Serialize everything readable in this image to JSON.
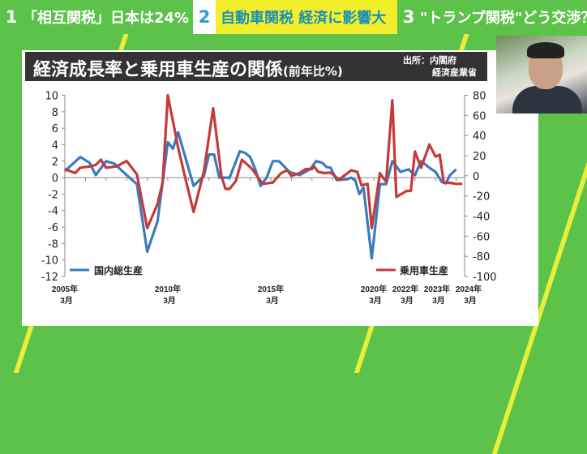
{
  "tabs": [
    {
      "num": "1",
      "label": "「相互関税」日本は24%"
    },
    {
      "num": "2",
      "label": "自動車関税 経済に影響大"
    },
    {
      "num": "3",
      "label": "\"トランプ関税\"どう交渉？"
    }
  ],
  "chart_title": {
    "main": "経済成長率と乗用車生産の関係",
    "unit": "(前年比%)"
  },
  "source": {
    "line1": "出所：内閣府",
    "line2": "経済産業省"
  },
  "colors": {
    "background": "#5cc24a",
    "gdp": "#3a7bbf",
    "car": "#c43a3a",
    "tab_active": "#f2ef2a"
  },
  "chart_data": {
    "type": "line",
    "title": "経済成長率と乗用車生産の関係(前年比%)",
    "x_ticks": [
      {
        "year": 2005,
        "l1": "2005年",
        "l2": "3月"
      },
      {
        "year": 2010,
        "l1": "2010年",
        "l2": "3月"
      },
      {
        "year": 2015,
        "l1": "2015年",
        "l2": "3月"
      },
      {
        "year": 2020,
        "l1": "2020年",
        "l2": "3月"
      },
      {
        "year": 2022,
        "l1": "2022年",
        "l2": "3月"
      },
      {
        "year": 2023,
        "l1": "2023年",
        "l2": "3月"
      },
      {
        "year": 2024,
        "l1": "2024年",
        "l2": "3月"
      }
    ],
    "y_left": {
      "range": [
        -12,
        10
      ],
      "ticks": [
        "10",
        "8",
        "6",
        "4",
        "2",
        "0",
        "-2",
        "-4",
        "-6",
        "-8",
        "-10",
        "-12"
      ]
    },
    "y_right": {
      "range": [
        -100,
        80
      ],
      "ticks": [
        "80",
        "60",
        "40",
        "20",
        "0",
        "-20",
        "-40",
        "-60",
        "-80",
        "-100"
      ]
    },
    "legend": {
      "gdp": "国内総生産",
      "car": "乗用車生産"
    },
    "series": [
      {
        "name": "国内総生産",
        "axis": "left",
        "points": [
          [
            2005.0,
            0.8
          ],
          [
            2005.75,
            2.5
          ],
          [
            2006.2,
            1.8
          ],
          [
            2006.5,
            0.3
          ],
          [
            2007.0,
            2.0
          ],
          [
            2007.4,
            1.7
          ],
          [
            2008.0,
            0.3
          ],
          [
            2008.5,
            -0.8
          ],
          [
            2009.0,
            -9
          ],
          [
            2009.5,
            -5.3
          ],
          [
            2010.0,
            4.3
          ],
          [
            2010.25,
            3.5
          ],
          [
            2010.5,
            5.5
          ],
          [
            2011.25,
            -1
          ],
          [
            2011.75,
            0.2
          ],
          [
            2012.0,
            2.8
          ],
          [
            2012.25,
            2.8
          ],
          [
            2012.5,
            0
          ],
          [
            2013.0,
            0
          ],
          [
            2013.5,
            3.2
          ],
          [
            2013.75,
            3
          ],
          [
            2014.0,
            2.5
          ],
          [
            2014.25,
            1
          ],
          [
            2014.5,
            -1
          ],
          [
            2014.8,
            0
          ],
          [
            2015.1,
            2
          ],
          [
            2015.4,
            2
          ],
          [
            2015.9,
            0.7
          ],
          [
            2016.4,
            0.3
          ],
          [
            2016.9,
            1
          ],
          [
            2017.2,
            2
          ],
          [
            2017.5,
            1.8
          ],
          [
            2017.7,
            1.3
          ],
          [
            2017.9,
            1.2
          ],
          [
            2018.2,
            -0.3
          ],
          [
            2018.7,
            -0.2
          ],
          [
            2018.9,
            0
          ],
          [
            2019.1,
            -0.3
          ],
          [
            2019.3,
            -2
          ],
          [
            2019.5,
            -1.2
          ],
          [
            2019.9,
            -9.8
          ],
          [
            2020.3,
            -0.8
          ],
          [
            2020.6,
            -0.8
          ],
          [
            2020.9,
            2
          ],
          [
            2021.3,
            0.7
          ],
          [
            2021.7,
            1
          ],
          [
            2022.0,
            0.3
          ],
          [
            2022.3,
            2
          ],
          [
            2022.7,
            1.2
          ],
          [
            2023.0,
            0.7
          ],
          [
            2023.3,
            -0.5
          ],
          [
            2023.5,
            -0.7
          ],
          [
            2023.7,
            0.3
          ],
          [
            2024.0,
            1
          ]
        ]
      },
      {
        "name": "乗用車生産",
        "axis": "right",
        "points": [
          [
            2005.0,
            6.7
          ],
          [
            2005.5,
            2.7
          ],
          [
            2005.75,
            8
          ],
          [
            2006.2,
            9.3
          ],
          [
            2006.5,
            10.7
          ],
          [
            2006.75,
            16
          ],
          [
            2007.0,
            8
          ],
          [
            2007.5,
            9.3
          ],
          [
            2008.0,
            14.7
          ],
          [
            2008.5,
            1.3
          ],
          [
            2009.0,
            -52
          ],
          [
            2009.5,
            -28
          ],
          [
            2009.75,
            -6.7
          ],
          [
            2010.0,
            80
          ],
          [
            2010.5,
            28
          ],
          [
            2010.9,
            -6.7
          ],
          [
            2011.25,
            -36
          ],
          [
            2011.75,
            4
          ],
          [
            2012.2,
            67
          ],
          [
            2012.6,
            0
          ],
          [
            2012.8,
            -13
          ],
          [
            2013.0,
            -13
          ],
          [
            2013.3,
            -5.3
          ],
          [
            2013.6,
            16
          ],
          [
            2014.1,
            6.7
          ],
          [
            2014.6,
            -8
          ],
          [
            2015.1,
            -6.7
          ],
          [
            2015.5,
            2.7
          ],
          [
            2015.8,
            5.4
          ],
          [
            2016.0,
            0
          ],
          [
            2016.4,
            2.7
          ],
          [
            2016.7,
            6.7
          ],
          [
            2017.0,
            6.7
          ],
          [
            2017.1,
            9.4
          ],
          [
            2017.3,
            4
          ],
          [
            2017.6,
            2.7
          ],
          [
            2017.9,
            3.2
          ],
          [
            2018.1,
            0
          ],
          [
            2018.3,
            -4
          ],
          [
            2018.9,
            5.4
          ],
          [
            2019.2,
            4
          ],
          [
            2019.4,
            -9.4
          ],
          [
            2019.7,
            -8
          ],
          [
            2019.9,
            -52
          ],
          [
            2020.3,
            2.7
          ],
          [
            2020.6,
            -6
          ],
          [
            2020.9,
            75
          ],
          [
            2021.1,
            -21
          ],
          [
            2021.6,
            -15
          ],
          [
            2021.8,
            -15
          ],
          [
            2022.0,
            24
          ],
          [
            2022.3,
            8
          ],
          [
            2022.7,
            31
          ],
          [
            2023.0,
            19
          ],
          [
            2023.2,
            21
          ],
          [
            2023.4,
            -7
          ],
          [
            2023.7,
            -7
          ],
          [
            2024.0,
            -8
          ],
          [
            2024.3,
            -8
          ]
        ]
      }
    ],
    "grid": false,
    "legend_placement": "bottom"
  }
}
